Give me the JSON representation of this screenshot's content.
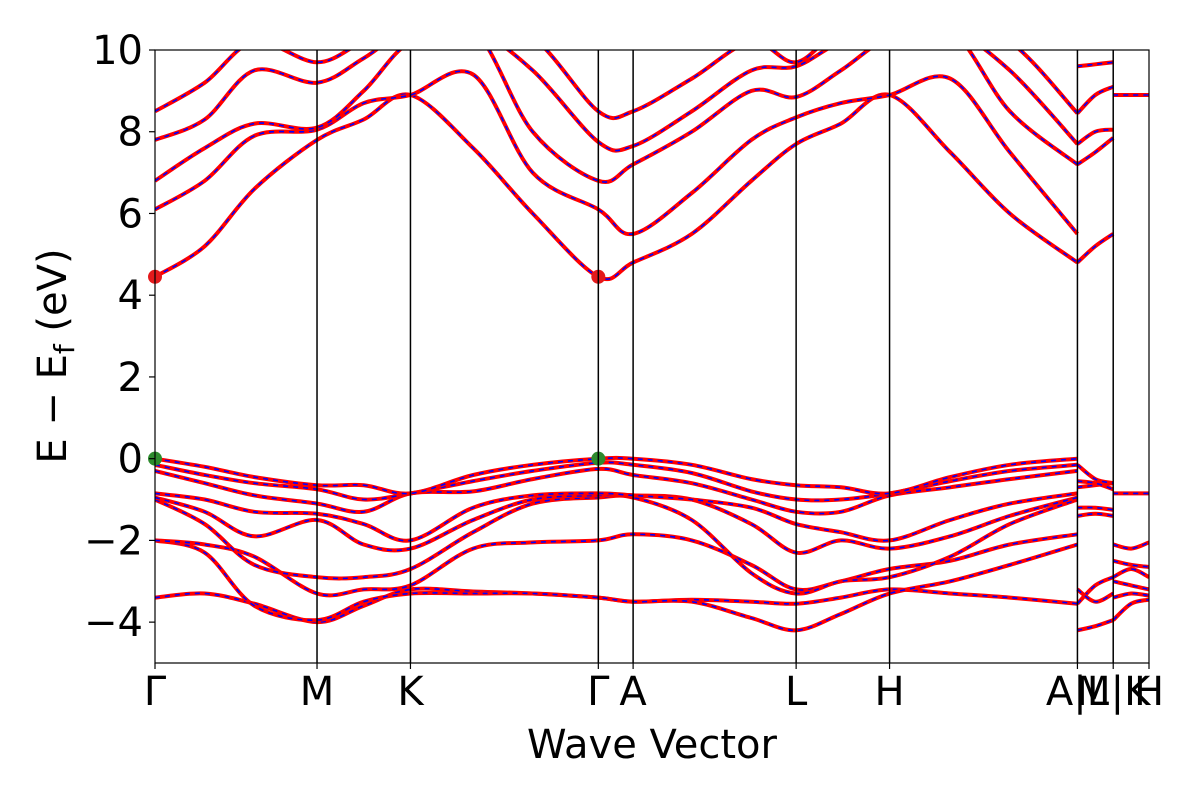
{
  "chart_data": {
    "type": "line",
    "title": "",
    "xlabel": "Wave Vector",
    "ylabel": "E − E_f (eV)",
    "ylim": [
      -5,
      10
    ],
    "yticks": [
      "−4",
      "−2",
      "0",
      "2",
      "4",
      "6",
      "8",
      "10"
    ],
    "ytick_values": [
      -4,
      -2,
      0,
      2,
      4,
      6,
      8,
      10
    ],
    "xlim": [
      0,
      1.0
    ],
    "kpoints": [
      {
        "label": "Γ",
        "x": 0.0
      },
      {
        "label": "M",
        "x": 0.163
      },
      {
        "label": "K",
        "x": 0.257
      },
      {
        "label": "Γ",
        "x": 0.446
      },
      {
        "label": "A",
        "x": 0.481
      },
      {
        "label": "L",
        "x": 0.645
      },
      {
        "label": "H",
        "x": 0.739
      },
      {
        "label": "A|L",
        "x": 0.928
      },
      {
        "label": "M|K",
        "x": 0.964
      },
      {
        "label": "H",
        "x": 1.0
      }
    ],
    "series_style": {
      "primary_color": "#ff0000",
      "overlay_color": "#0000ff",
      "overlay_dash": "dashed"
    },
    "markers": [
      {
        "name": "CBM",
        "color": "#e41a1c",
        "points": [
          [
            0.0,
            4.45
          ],
          [
            0.446,
            4.45
          ]
        ]
      },
      {
        "name": "VBM",
        "color": "#2e8b2e",
        "points": [
          [
            0.0,
            0.0
          ],
          [
            0.446,
            0.0
          ]
        ]
      }
    ],
    "bands": [
      {
        "x": [
          0,
          0.05,
          0.1,
          0.163,
          0.21,
          0.257,
          0.32,
          0.38,
          0.446,
          0.481,
          0.54,
          0.6,
          0.645,
          0.69,
          0.739,
          0.8,
          0.86,
          0.928
        ],
        "y": [
          -3.4,
          -3.3,
          -3.55,
          -4.0,
          -3.6,
          -3.2,
          -3.25,
          -3.3,
          -3.4,
          -3.5,
          -3.45,
          -3.5,
          -3.55,
          -3.4,
          -3.2,
          -3.3,
          -3.4,
          -3.55
        ]
      },
      {
        "x": [
          0,
          0.05,
          0.1,
          0.163,
          0.21,
          0.257,
          0.32,
          0.38,
          0.446,
          0.481,
          0.54,
          0.6,
          0.645,
          0.69,
          0.739,
          0.8,
          0.86,
          0.928
        ],
        "y": [
          -2.0,
          -2.3,
          -3.6,
          -3.95,
          -3.5,
          -3.3,
          -3.3,
          -3.3,
          -3.4,
          -3.5,
          -3.5,
          -3.9,
          -4.2,
          -3.8,
          -3.3,
          -3.0,
          -2.6,
          -2.1
        ]
      },
      {
        "x": [
          0,
          0.05,
          0.1,
          0.163,
          0.21,
          0.257,
          0.32,
          0.38,
          0.446,
          0.481,
          0.54,
          0.6,
          0.645,
          0.69,
          0.739,
          0.8,
          0.86,
          0.928
        ],
        "y": [
          -2.0,
          -2.1,
          -2.4,
          -3.3,
          -3.2,
          -3.1,
          -2.2,
          -2.05,
          -2.0,
          -1.85,
          -2.0,
          -2.6,
          -3.2,
          -3.0,
          -2.7,
          -2.5,
          -2.1,
          -1.85
        ]
      },
      {
        "x": [
          0,
          0.05,
          0.1,
          0.163,
          0.21,
          0.257,
          0.32,
          0.38,
          0.446,
          0.481,
          0.54,
          0.6,
          0.645,
          0.69,
          0.739,
          0.8,
          0.86,
          0.928
        ],
        "y": [
          -1.0,
          -1.6,
          -2.6,
          -2.9,
          -2.9,
          -2.7,
          -1.8,
          -1.1,
          -0.95,
          -0.95,
          -1.5,
          -2.8,
          -3.3,
          -3.0,
          -2.9,
          -2.4,
          -1.6,
          -1.0
        ]
      },
      {
        "x": [
          0,
          0.05,
          0.1,
          0.163,
          0.21,
          0.257,
          0.32,
          0.38,
          0.446,
          0.481,
          0.54,
          0.6,
          0.645,
          0.69,
          0.739,
          0.8,
          0.86,
          0.928
        ],
        "y": [
          -0.95,
          -1.3,
          -1.9,
          -1.5,
          -2.1,
          -2.2,
          -1.5,
          -1.0,
          -0.9,
          -0.9,
          -1.0,
          -1.6,
          -2.3,
          -2.0,
          -2.2,
          -1.9,
          -1.4,
          -0.95
        ]
      },
      {
        "x": [
          0,
          0.05,
          0.1,
          0.163,
          0.21,
          0.257,
          0.32,
          0.38,
          0.446,
          0.481,
          0.54,
          0.6,
          0.645,
          0.69,
          0.739,
          0.8,
          0.86,
          0.928
        ],
        "y": [
          -0.85,
          -1.0,
          -1.3,
          -1.35,
          -1.6,
          -2.0,
          -1.2,
          -0.9,
          -0.85,
          -0.9,
          -1.0,
          -1.2,
          -1.6,
          -1.8,
          -2.0,
          -1.5,
          -1.1,
          -0.85
        ]
      },
      {
        "x": [
          0,
          0.05,
          0.1,
          0.163,
          0.21,
          0.257,
          0.32,
          0.38,
          0.446,
          0.481,
          0.54,
          0.6,
          0.645,
          0.69,
          0.739,
          0.8,
          0.86,
          0.928
        ],
        "y": [
          -0.3,
          -0.6,
          -0.9,
          -1.1,
          -1.3,
          -0.85,
          -0.8,
          -0.5,
          -0.25,
          -0.4,
          -0.6,
          -1.0,
          -1.3,
          -1.3,
          -0.9,
          -0.7,
          -0.5,
          -0.3
        ]
      },
      {
        "x": [
          0,
          0.05,
          0.1,
          0.163,
          0.21,
          0.257,
          0.32,
          0.38,
          0.446,
          0.481,
          0.54,
          0.6,
          0.645,
          0.69,
          0.739,
          0.8,
          0.86,
          0.928
        ],
        "y": [
          -0.15,
          -0.4,
          -0.6,
          -0.75,
          -1.0,
          -0.85,
          -0.55,
          -0.3,
          -0.1,
          -0.15,
          -0.35,
          -0.8,
          -1.0,
          -1.0,
          -0.85,
          -0.55,
          -0.3,
          -0.15
        ]
      },
      {
        "x": [
          0,
          0.05,
          0.1,
          0.163,
          0.21,
          0.257,
          0.32,
          0.38,
          0.446,
          0.481,
          0.54,
          0.6,
          0.645,
          0.69,
          0.739,
          0.8,
          0.86,
          0.928
        ],
        "y": [
          0.0,
          -0.2,
          -0.45,
          -0.65,
          -0.65,
          -0.85,
          -0.4,
          -0.15,
          0.0,
          0.0,
          -0.15,
          -0.5,
          -0.65,
          -0.7,
          -0.85,
          -0.45,
          -0.15,
          0.0
        ]
      },
      {
        "x": [
          0,
          0.05,
          0.1,
          0.163,
          0.21,
          0.257,
          0.32,
          0.38,
          0.446,
          0.481,
          0.54,
          0.6,
          0.645,
          0.69,
          0.739,
          0.8,
          0.86,
          0.928
        ],
        "y": [
          4.45,
          5.2,
          6.6,
          7.8,
          8.3,
          8.9,
          7.6,
          6.0,
          4.45,
          4.8,
          5.5,
          6.8,
          7.7,
          8.2,
          8.9,
          7.5,
          6.0,
          4.8
        ]
      },
      {
        "x": [
          0,
          0.05,
          0.1,
          0.163,
          0.21,
          0.257,
          0.32,
          0.38,
          0.446,
          0.481,
          0.54,
          0.6,
          0.645,
          0.69,
          0.739,
          0.8,
          0.86,
          0.928
        ],
        "y": [
          6.1,
          6.8,
          7.9,
          8.05,
          8.7,
          8.9,
          9.4,
          7.0,
          6.1,
          5.5,
          6.5,
          7.8,
          8.35,
          8.7,
          8.9,
          9.3,
          7.5,
          5.5
        ]
      },
      {
        "x": [
          0,
          0.05,
          0.1,
          0.163,
          0.21,
          0.257,
          0.32,
          0.38,
          0.446,
          0.481,
          0.54,
          0.6,
          0.645,
          0.69,
          0.739,
          0.8,
          0.86,
          0.928
        ],
        "y": [
          6.8,
          7.6,
          8.2,
          8.1,
          9.0,
          10.2,
          10.5,
          8.0,
          6.8,
          7.2,
          8.0,
          9.0,
          8.85,
          9.5,
          10.3,
          10.5,
          8.5,
          7.2
        ]
      },
      {
        "x": [
          0,
          0.05,
          0.1,
          0.163,
          0.21,
          0.257,
          0.32,
          0.38,
          0.446,
          0.481,
          0.54,
          0.6,
          0.645,
          0.69,
          0.739,
          0.8,
          0.86,
          0.928
        ],
        "y": [
          7.8,
          8.3,
          9.5,
          9.2,
          9.8,
          10.5,
          10.5,
          9.5,
          7.75,
          7.65,
          8.5,
          9.5,
          9.6,
          10.2,
          10.5,
          10.5,
          9.5,
          7.7
        ]
      },
      {
        "x": [
          0,
          0.05,
          0.1,
          0.163,
          0.21,
          0.257,
          0.32,
          0.38,
          0.446,
          0.481,
          0.54,
          0.6,
          0.645,
          0.69,
          0.739,
          0.8,
          0.86,
          0.928
        ],
        "y": [
          8.5,
          9.2,
          10.2,
          9.7,
          10.2,
          10.5,
          10.5,
          10.3,
          8.5,
          8.5,
          9.3,
          10.2,
          9.7,
          10.5,
          10.5,
          10.5,
          10.2,
          8.45
        ]
      },
      {
        "x": [
          0.928,
          0.946,
          0.964
        ],
        "y": [
          -4.2,
          -4.1,
          -3.95
        ]
      },
      {
        "x": [
          0.928,
          0.946,
          0.964
        ],
        "y": [
          -3.55,
          -3.1,
          -2.9
        ]
      },
      {
        "x": [
          0.928,
          0.946,
          0.964
        ],
        "y": [
          -3.2,
          -3.5,
          -3.3
        ]
      },
      {
        "x": [
          0.928,
          0.946,
          0.964
        ],
        "y": [
          -1.4,
          -1.35,
          -1.4
        ]
      },
      {
        "x": [
          0.928,
          0.946,
          0.964
        ],
        "y": [
          -1.2,
          -1.2,
          -1.25
        ]
      },
      {
        "x": [
          0.928,
          0.946,
          0.964
        ],
        "y": [
          -0.7,
          -0.65,
          -0.6
        ]
      },
      {
        "x": [
          0.928,
          0.946,
          0.964
        ],
        "y": [
          -0.55,
          -0.6,
          -0.75
        ]
      },
      {
        "x": [
          0.928,
          0.946,
          0.964
        ],
        "y": [
          -0.15,
          -0.5,
          -0.6
        ]
      },
      {
        "x": [
          0.928,
          0.946,
          0.964
        ],
        "y": [
          4.8,
          5.2,
          5.5
        ]
      },
      {
        "x": [
          0.928,
          0.946,
          0.964
        ],
        "y": [
          7.2,
          7.5,
          7.85
        ]
      },
      {
        "x": [
          0.928,
          0.946,
          0.964
        ],
        "y": [
          7.7,
          8.0,
          8.05
        ]
      },
      {
        "x": [
          0.928,
          0.946,
          0.964
        ],
        "y": [
          8.45,
          8.9,
          9.1
        ]
      },
      {
        "x": [
          0.928,
          0.946,
          0.964
        ],
        "y": [
          9.6,
          9.65,
          9.7
        ]
      },
      {
        "x": [
          0.964,
          0.982,
          1.0
        ],
        "y": [
          -3.95,
          -3.55,
          -3.45
        ]
      },
      {
        "x": [
          0.964,
          0.982,
          1.0
        ],
        "y": [
          -3.4,
          -3.3,
          -3.35
        ]
      },
      {
        "x": [
          0.964,
          0.982,
          1.0
        ],
        "y": [
          -3.0,
          -3.1,
          -3.2
        ]
      },
      {
        "x": [
          0.964,
          0.982,
          1.0
        ],
        "y": [
          -2.9,
          -2.7,
          -2.9
        ]
      },
      {
        "x": [
          0.964,
          0.982,
          1.0
        ],
        "y": [
          -2.5,
          -2.6,
          -2.65
        ]
      },
      {
        "x": [
          0.964,
          0.982,
          1.0
        ],
        "y": [
          -2.1,
          -2.2,
          -2.05
        ]
      },
      {
        "x": [
          0.964,
          0.982,
          1.0
        ],
        "y": [
          -0.85,
          -0.85,
          -0.85
        ]
      },
      {
        "x": [
          0.964,
          0.982,
          1.0
        ],
        "y": [
          8.9,
          8.9,
          8.9
        ]
      }
    ]
  }
}
